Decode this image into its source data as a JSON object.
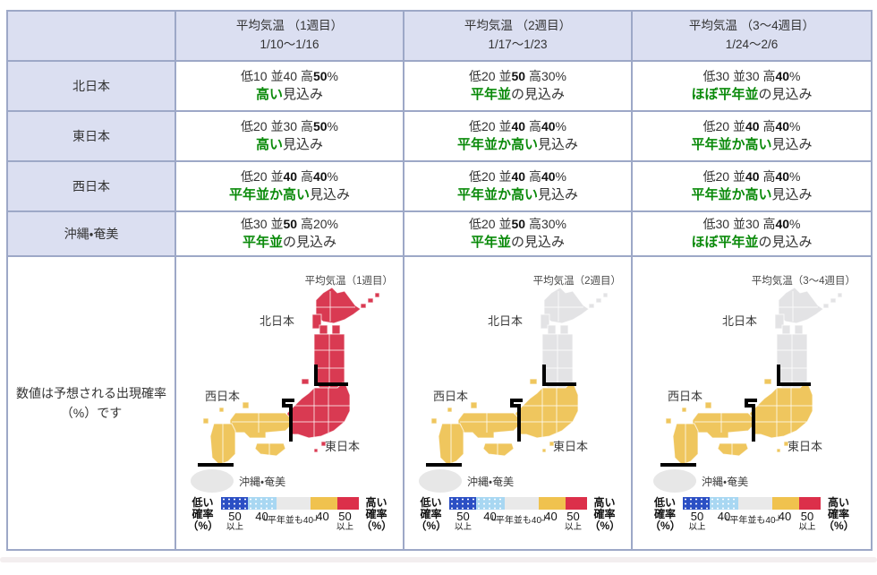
{
  "colors": {
    "border": "#9da8c7",
    "header_bg": "#dbdff1",
    "green": "#0a8a0a",
    "map_red": "#d93a52",
    "map_yellow": "#efc65e",
    "map_gray": "#e3e3e5",
    "okinawa_gray": "#e7e7e7",
    "legend_dark_blue": "#2b4fc4",
    "legend_light_blue": "#a8d7f2",
    "legend_gray": "#e9e9e9",
    "legend_yellow": "#f0c24e",
    "legend_red": "#dc2f4a"
  },
  "table": {
    "headers": [
      {
        "title": "平均気温 （1週目）",
        "dates": "1/10〜1/16"
      },
      {
        "title": "平均気温 （2週目）",
        "dates": "1/17〜1/23"
      },
      {
        "title": "平均気温 （3〜4週目）",
        "dates": "1/24〜2/6"
      }
    ],
    "rows": [
      {
        "region": "北日本",
        "cells": [
          {
            "prob": [
              {
                "t": "低10 並40 高"
              },
              {
                "t": "50",
                "b": 1
              },
              {
                "t": "%"
              }
            ],
            "outlook": [
              {
                "t": "高い",
                "g": 1
              },
              {
                "t": "見込み"
              }
            ]
          },
          {
            "prob": [
              {
                "t": "低20 並"
              },
              {
                "t": "50",
                "b": 1
              },
              {
                "t": " 高30%"
              }
            ],
            "outlook": [
              {
                "t": "平年並",
                "g": 1
              },
              {
                "t": "の見込み"
              }
            ]
          },
          {
            "prob": [
              {
                "t": "低30 並30 高"
              },
              {
                "t": "40",
                "b": 1
              },
              {
                "t": "%"
              }
            ],
            "outlook": [
              {
                "t": "ほぼ平年並",
                "g": 1
              },
              {
                "t": "の見込み"
              }
            ]
          }
        ]
      },
      {
        "region": "東日本",
        "cells": [
          {
            "prob": [
              {
                "t": "低20 並30 高"
              },
              {
                "t": "50",
                "b": 1
              },
              {
                "t": "%"
              }
            ],
            "outlook": [
              {
                "t": "高い",
                "g": 1
              },
              {
                "t": "見込み"
              }
            ]
          },
          {
            "prob": [
              {
                "t": "低20 並"
              },
              {
                "t": "40",
                "b": 1
              },
              {
                "t": " 高"
              },
              {
                "t": "40",
                "b": 1
              },
              {
                "t": "%"
              }
            ],
            "outlook": [
              {
                "t": "平年並か高い",
                "g": 1
              },
              {
                "t": "見込み"
              }
            ]
          },
          {
            "prob": [
              {
                "t": "低20 並"
              },
              {
                "t": "40",
                "b": 1
              },
              {
                "t": " 高"
              },
              {
                "t": "40",
                "b": 1
              },
              {
                "t": "%"
              }
            ],
            "outlook": [
              {
                "t": "平年並か高い",
                "g": 1
              },
              {
                "t": "見込み"
              }
            ]
          }
        ]
      },
      {
        "region": "西日本",
        "cells": [
          {
            "prob": [
              {
                "t": "低20 並"
              },
              {
                "t": "40",
                "b": 1
              },
              {
                "t": " 高"
              },
              {
                "t": "40",
                "b": 1
              },
              {
                "t": "%"
              }
            ],
            "outlook": [
              {
                "t": "平年並か高い",
                "g": 1
              },
              {
                "t": "見込み"
              }
            ]
          },
          {
            "prob": [
              {
                "t": "低20 並"
              },
              {
                "t": "40",
                "b": 1
              },
              {
                "t": " 高"
              },
              {
                "t": "40",
                "b": 1
              },
              {
                "t": "%"
              }
            ],
            "outlook": [
              {
                "t": "平年並か高い",
                "g": 1
              },
              {
                "t": "見込み"
              }
            ]
          },
          {
            "prob": [
              {
                "t": "低20 並"
              },
              {
                "t": "40",
                "b": 1
              },
              {
                "t": " 高"
              },
              {
                "t": "40",
                "b": 1
              },
              {
                "t": "%"
              }
            ],
            "outlook": [
              {
                "t": "平年並か高い",
                "g": 1
              },
              {
                "t": "見込み"
              }
            ]
          }
        ]
      },
      {
        "region": "沖縄・奄美",
        "cells": [
          {
            "prob": [
              {
                "t": "低30 並"
              },
              {
                "t": "50",
                "b": 1
              },
              {
                "t": " 高20%"
              }
            ],
            "outlook": [
              {
                "t": "平年並",
                "g": 1
              },
              {
                "t": "の見込み"
              }
            ]
          },
          {
            "prob": [
              {
                "t": "低20 並"
              },
              {
                "t": "50",
                "b": 1
              },
              {
                "t": " 高30%"
              }
            ],
            "outlook": [
              {
                "t": "平年並",
                "g": 1
              },
              {
                "t": "の見込み"
              }
            ]
          },
          {
            "prob": [
              {
                "t": "低30 並30 高"
              },
              {
                "t": "40",
                "b": 1
              },
              {
                "t": "%"
              }
            ],
            "outlook": [
              {
                "t": "ほぼ平年並",
                "g": 1
              },
              {
                "t": "の見込み"
              }
            ]
          }
        ]
      }
    ]
  },
  "note": {
    "line1": "数値は予想される出現確率",
    "line2": "（%）です"
  },
  "maps": [
    {
      "title": "平均気温（1週目）",
      "labels": {
        "north": "北日本",
        "west": "西日本",
        "east": "東日本",
        "okinawa": "沖縄・奄美"
      },
      "fills": {
        "north": "#d93a52",
        "east": "#d93a52",
        "west": "#efc65e",
        "okinawa": "#e7e7e7"
      }
    },
    {
      "title": "平均気温（2週目）",
      "labels": {
        "north": "北日本",
        "west": "西日本",
        "east": "東日本",
        "okinawa": "沖縄・奄美"
      },
      "fills": {
        "north": "#e3e3e5",
        "east": "#efc65e",
        "west": "#efc65e",
        "okinawa": "#e7e7e7"
      }
    },
    {
      "title": "平均気温（3〜4週目）",
      "labels": {
        "north": "北日本",
        "west": "西日本",
        "east": "東日本",
        "okinawa": "沖縄・奄美"
      },
      "fills": {
        "north": "#e3e3e5",
        "east": "#efc65e",
        "west": "#efc65e",
        "okinawa": "#e7e7e7"
      }
    }
  ],
  "legend": {
    "low": [
      "低い",
      "確率",
      "（%）"
    ],
    "high": [
      "高い",
      "確率",
      "（%）"
    ],
    "ticks": {
      "b1": "50",
      "b1b": "以上",
      "b2": "40",
      "b3": "40",
      "b4": "50",
      "b4b": "以上"
    },
    "note": "└平年並も40┘"
  }
}
